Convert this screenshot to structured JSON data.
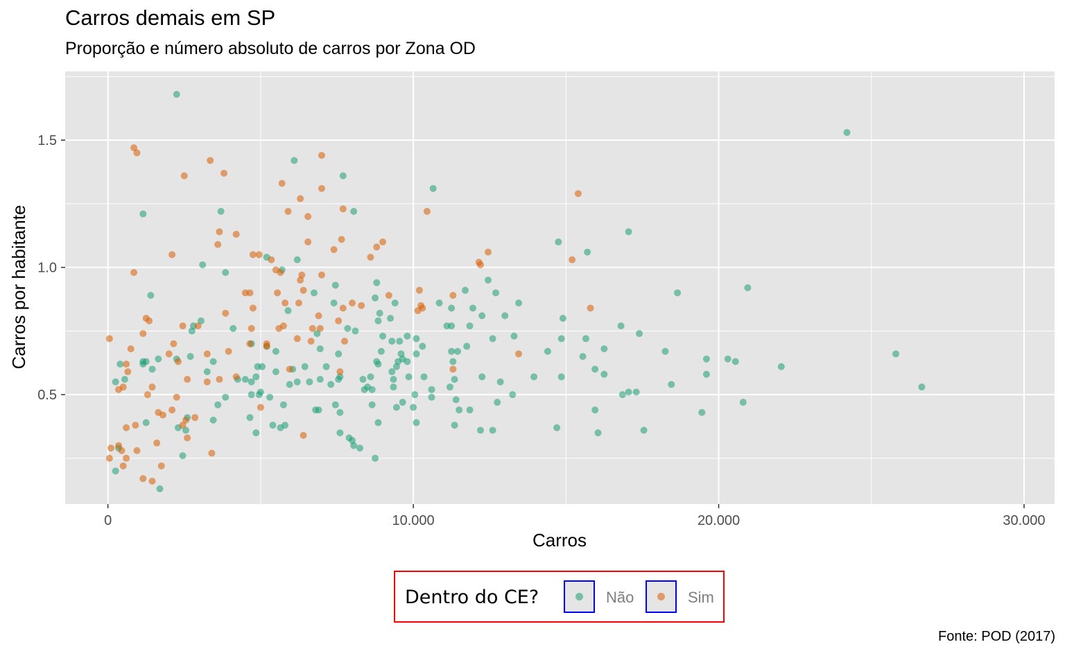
{
  "chart_data": {
    "type": "scatter",
    "title": "Carros demais em SP",
    "subtitle": "Proporção e número absoluto de carros por Zona OD",
    "caption": "Fonte: POD (2017)",
    "xlabel": "Carros",
    "ylabel": "Carros por habitante",
    "xlim": [
      -1400,
      31000
    ],
    "ylim": [
      0.07,
      1.77
    ],
    "x_ticks": [
      0,
      10000,
      20000,
      30000
    ],
    "x_tick_labels": [
      "0",
      "10.000",
      "20.000",
      "30.000"
    ],
    "y_ticks": [
      0.5,
      1.0,
      1.5
    ],
    "y_tick_labels": [
      "0.5",
      "1.0",
      "1.5"
    ],
    "grid": true,
    "legend": {
      "title": "Dentro do CE?",
      "placement": "bottom"
    },
    "colors": {
      "nao": "#1b9e77",
      "sim": "#d95f02",
      "panel": "#e5e5e5",
      "grid": "#ffffff",
      "legend_border": "#ff0000",
      "key_border": "#0000ff"
    },
    "series": [
      {
        "name": "Não",
        "color": "#1b9e77",
        "points": [
          [
            2250,
            1.68
          ],
          [
            24200,
            1.53
          ],
          [
            6100,
            1.42
          ],
          [
            7700,
            1.36
          ],
          [
            10650,
            1.31
          ],
          [
            1150,
            1.21
          ],
          [
            3700,
            1.22
          ],
          [
            8050,
            1.22
          ],
          [
            17050,
            1.14
          ],
          [
            14750,
            1.1
          ],
          [
            15700,
            1.06
          ],
          [
            5200,
            1.04
          ],
          [
            6200,
            1.03
          ],
          [
            3100,
            1.01
          ],
          [
            3850,
            0.98
          ],
          [
            5700,
            0.99
          ],
          [
            20950,
            0.92
          ],
          [
            11700,
            0.91
          ],
          [
            7450,
            0.93
          ],
          [
            8800,
            0.94
          ],
          [
            12450,
            0.95
          ],
          [
            1400,
            0.89
          ],
          [
            6750,
            0.9
          ],
          [
            12700,
            0.9
          ],
          [
            18650,
            0.9
          ],
          [
            7400,
            0.86
          ],
          [
            8750,
            0.88
          ],
          [
            9400,
            0.86
          ],
          [
            10850,
            0.86
          ],
          [
            13450,
            0.86
          ],
          [
            5900,
            0.83
          ],
          [
            8900,
            0.82
          ],
          [
            11250,
            0.84
          ],
          [
            11950,
            0.84
          ],
          [
            3050,
            0.79
          ],
          [
            9250,
            0.8
          ],
          [
            8850,
            0.79
          ],
          [
            12250,
            0.81
          ],
          [
            13000,
            0.81
          ],
          [
            14900,
            0.8
          ],
          [
            2800,
            0.77
          ],
          [
            4100,
            0.76
          ],
          [
            7850,
            0.76
          ],
          [
            8100,
            0.75
          ],
          [
            11250,
            0.77
          ],
          [
            11100,
            0.77
          ],
          [
            11850,
            0.77
          ],
          [
            16800,
            0.77
          ],
          [
            2750,
            0.75
          ],
          [
            17400,
            0.74
          ],
          [
            6850,
            0.74
          ],
          [
            9000,
            0.73
          ],
          [
            9800,
            0.73
          ],
          [
            9550,
            0.71
          ],
          [
            9300,
            0.71
          ],
          [
            10100,
            0.72
          ],
          [
            12600,
            0.72
          ],
          [
            13300,
            0.73
          ],
          [
            15650,
            0.72
          ],
          [
            14850,
            0.72
          ],
          [
            4700,
            0.7
          ],
          [
            5200,
            0.69
          ],
          [
            10300,
            0.69
          ],
          [
            11750,
            0.69
          ],
          [
            6950,
            0.68
          ],
          [
            8950,
            0.67
          ],
          [
            11250,
            0.67
          ],
          [
            11450,
            0.67
          ],
          [
            14400,
            0.67
          ],
          [
            16250,
            0.68
          ],
          [
            18250,
            0.67
          ],
          [
            5500,
            0.67
          ],
          [
            7550,
            0.66
          ],
          [
            9600,
            0.66
          ],
          [
            10100,
            0.66
          ],
          [
            15550,
            0.65
          ],
          [
            19600,
            0.64
          ],
          [
            20300,
            0.64
          ],
          [
            20550,
            0.63
          ],
          [
            25800,
            0.66
          ],
          [
            1650,
            0.64
          ],
          [
            1150,
            0.62
          ],
          [
            1250,
            0.63
          ],
          [
            2700,
            0.65
          ],
          [
            3450,
            0.63
          ],
          [
            8800,
            0.63
          ],
          [
            9500,
            0.63
          ],
          [
            9800,
            0.63
          ],
          [
            11300,
            0.63
          ],
          [
            22050,
            0.61
          ],
          [
            400,
            0.62
          ],
          [
            1450,
            0.6
          ],
          [
            3250,
            0.59
          ],
          [
            6050,
            0.6
          ],
          [
            6450,
            0.61
          ],
          [
            5050,
            0.61
          ],
          [
            4900,
            0.61
          ],
          [
            7150,
            0.61
          ],
          [
            8850,
            0.62
          ],
          [
            9450,
            0.61
          ],
          [
            9300,
            0.59
          ],
          [
            9650,
            0.64
          ],
          [
            15950,
            0.6
          ],
          [
            16250,
            0.58
          ],
          [
            17050,
            0.51
          ],
          [
            19600,
            0.58
          ],
          [
            250,
            0.55
          ],
          [
            550,
            0.56
          ],
          [
            4250,
            0.56
          ],
          [
            4500,
            0.56
          ],
          [
            4700,
            0.55
          ],
          [
            4850,
            0.57
          ],
          [
            5500,
            0.59
          ],
          [
            5950,
            0.54
          ],
          [
            6200,
            0.55
          ],
          [
            6950,
            0.56
          ],
          [
            7550,
            0.56
          ],
          [
            7600,
            0.57
          ],
          [
            7300,
            0.54
          ],
          [
            8350,
            0.56
          ],
          [
            8500,
            0.53
          ],
          [
            8600,
            0.57
          ],
          [
            9350,
            0.56
          ],
          [
            9850,
            0.57
          ],
          [
            10350,
            0.57
          ],
          [
            11350,
            0.56
          ],
          [
            11200,
            0.53
          ],
          [
            12250,
            0.57
          ],
          [
            12850,
            0.55
          ],
          [
            14850,
            0.57
          ],
          [
            13950,
            0.57
          ],
          [
            18450,
            0.54
          ],
          [
            26650,
            0.53
          ],
          [
            2250,
            0.64
          ],
          [
            8400,
            0.52
          ],
          [
            8650,
            0.52
          ],
          [
            10600,
            0.52
          ],
          [
            9350,
            0.53
          ],
          [
            6600,
            0.55
          ],
          [
            5000,
            0.51
          ],
          [
            4700,
            0.5
          ],
          [
            4950,
            0.5
          ],
          [
            5300,
            0.49
          ],
          [
            3850,
            0.49
          ],
          [
            10050,
            0.5
          ],
          [
            10600,
            0.49
          ],
          [
            13250,
            0.5
          ],
          [
            16850,
            0.5
          ],
          [
            17300,
            0.51
          ],
          [
            11400,
            0.48
          ],
          [
            12750,
            0.47
          ],
          [
            20800,
            0.47
          ],
          [
            3600,
            0.46
          ],
          [
            5750,
            0.46
          ],
          [
            7450,
            0.46
          ],
          [
            8650,
            0.46
          ],
          [
            9650,
            0.47
          ],
          [
            10000,
            0.45
          ],
          [
            6800,
            0.44
          ],
          [
            6900,
            0.44
          ],
          [
            9450,
            0.45
          ],
          [
            11850,
            0.44
          ],
          [
            11500,
            0.44
          ],
          [
            7600,
            0.43
          ],
          [
            15950,
            0.44
          ],
          [
            19450,
            0.43
          ],
          [
            2600,
            0.41
          ],
          [
            4650,
            0.41
          ],
          [
            1250,
            0.39
          ],
          [
            3450,
            0.4
          ],
          [
            8850,
            0.39
          ],
          [
            10100,
            0.39
          ],
          [
            11350,
            0.38
          ],
          [
            12200,
            0.36
          ],
          [
            12600,
            0.36
          ],
          [
            14700,
            0.37
          ],
          [
            16050,
            0.35
          ],
          [
            17550,
            0.36
          ],
          [
            5400,
            0.38
          ],
          [
            5800,
            0.38
          ],
          [
            7600,
            0.35
          ],
          [
            8000,
            0.32
          ],
          [
            7900,
            0.33
          ],
          [
            8250,
            0.29
          ],
          [
            1150,
            0.63
          ],
          [
            2300,
            0.37
          ],
          [
            2550,
            0.36
          ],
          [
            2450,
            0.26
          ],
          [
            4850,
            0.35
          ],
          [
            5650,
            0.37
          ],
          [
            8050,
            0.3
          ],
          [
            8750,
            0.25
          ],
          [
            250,
            0.2
          ],
          [
            1700,
            0.13
          ],
          [
            350,
            0.29
          ]
        ]
      },
      {
        "name": "Sim",
        "color": "#d95f02",
        "points": [
          [
            850,
            1.47
          ],
          [
            950,
            1.45
          ],
          [
            7000,
            1.44
          ],
          [
            3350,
            1.42
          ],
          [
            2500,
            1.36
          ],
          [
            3800,
            1.37
          ],
          [
            5700,
            1.33
          ],
          [
            7000,
            1.31
          ],
          [
            15400,
            1.29
          ],
          [
            6300,
            1.27
          ],
          [
            5900,
            1.22
          ],
          [
            6550,
            1.2
          ],
          [
            7700,
            1.23
          ],
          [
            10450,
            1.22
          ],
          [
            3650,
            1.14
          ],
          [
            4200,
            1.13
          ],
          [
            3600,
            1.09
          ],
          [
            7650,
            1.11
          ],
          [
            9000,
            1.1
          ],
          [
            8800,
            1.08
          ],
          [
            7400,
            1.07
          ],
          [
            6550,
            1.1
          ],
          [
            2100,
            1.05
          ],
          [
            4750,
            1.05
          ],
          [
            4950,
            1.05
          ],
          [
            5350,
            1.03
          ],
          [
            8600,
            1.04
          ],
          [
            12450,
            1.06
          ],
          [
            12150,
            1.02
          ],
          [
            12200,
            1.01
          ],
          [
            15200,
            1.03
          ],
          [
            850,
            0.98
          ],
          [
            5500,
            0.99
          ],
          [
            5650,
            0.98
          ],
          [
            6350,
            0.97
          ],
          [
            7000,
            0.97
          ],
          [
            6300,
            0.95
          ],
          [
            4500,
            0.9
          ],
          [
            4650,
            0.9
          ],
          [
            5550,
            0.9
          ],
          [
            6400,
            0.91
          ],
          [
            9200,
            0.89
          ],
          [
            10200,
            0.91
          ],
          [
            11300,
            0.89
          ],
          [
            8000,
            0.86
          ],
          [
            7700,
            0.84
          ],
          [
            8300,
            0.85
          ],
          [
            10300,
            0.84
          ],
          [
            10150,
            0.83
          ],
          [
            10250,
            0.85
          ],
          [
            6250,
            0.86
          ],
          [
            5800,
            0.86
          ],
          [
            4750,
            0.84
          ],
          [
            3850,
            0.82
          ],
          [
            15800,
            0.84
          ],
          [
            1250,
            0.8
          ],
          [
            1350,
            0.79
          ],
          [
            6900,
            0.81
          ],
          [
            7550,
            0.79
          ],
          [
            2450,
            0.77
          ],
          [
            2950,
            0.77
          ],
          [
            5750,
            0.77
          ],
          [
            5600,
            0.76
          ],
          [
            6700,
            0.76
          ],
          [
            6950,
            0.76
          ],
          [
            4700,
            0.76
          ],
          [
            1150,
            0.74
          ],
          [
            6650,
            0.71
          ],
          [
            4650,
            0.7
          ],
          [
            5200,
            0.7
          ],
          [
            5200,
            0.69
          ],
          [
            6200,
            0.72
          ],
          [
            7750,
            0.71
          ],
          [
            50,
            0.72
          ],
          [
            750,
            0.68
          ],
          [
            3950,
            0.67
          ],
          [
            3250,
            0.66
          ],
          [
            2000,
            0.66
          ],
          [
            2150,
            0.7
          ],
          [
            2300,
            0.63
          ],
          [
            13450,
            0.66
          ],
          [
            600,
            0.62
          ],
          [
            650,
            0.59
          ],
          [
            5950,
            0.6
          ],
          [
            7600,
            0.59
          ],
          [
            11300,
            0.6
          ],
          [
            3650,
            0.56
          ],
          [
            4200,
            0.57
          ],
          [
            2600,
            0.56
          ],
          [
            3250,
            0.55
          ],
          [
            500,
            0.53
          ],
          [
            350,
            0.52
          ],
          [
            1450,
            0.53
          ],
          [
            1300,
            0.5
          ],
          [
            2250,
            0.49
          ],
          [
            5000,
            0.45
          ],
          [
            1650,
            0.43
          ],
          [
            2100,
            0.44
          ],
          [
            2850,
            0.41
          ],
          [
            2550,
            0.4
          ],
          [
            2450,
            0.38
          ],
          [
            1800,
            0.42
          ],
          [
            900,
            0.38
          ],
          [
            600,
            0.37
          ],
          [
            2600,
            0.33
          ],
          [
            1600,
            0.31
          ],
          [
            6400,
            0.34
          ],
          [
            3400,
            0.27
          ],
          [
            100,
            0.29
          ],
          [
            350,
            0.3
          ],
          [
            450,
            0.28
          ],
          [
            950,
            0.28
          ],
          [
            50,
            0.25
          ],
          [
            600,
            0.25
          ],
          [
            500,
            0.22
          ],
          [
            1750,
            0.22
          ],
          [
            1150,
            0.17
          ],
          [
            1450,
            0.16
          ]
        ]
      }
    ]
  }
}
